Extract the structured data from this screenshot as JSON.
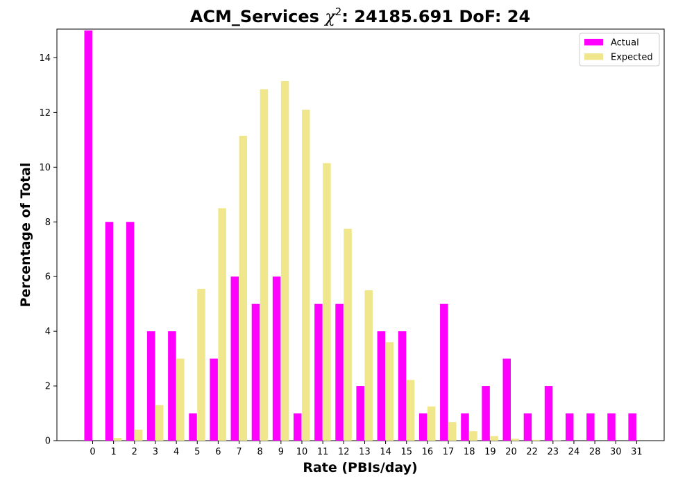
{
  "chart_data": {
    "type": "bar",
    "title_main": "ACM_Services ",
    "title_chi": "χ",
    "title_sup": "2",
    "title_rest": ": 24185.691 DoF: 24",
    "xlabel": "Rate (PBIs/day)",
    "ylabel": "Percentage of Total",
    "categories": [
      "0",
      "1",
      "2",
      "3",
      "4",
      "5",
      "6",
      "7",
      "8",
      "9",
      "10",
      "11",
      "12",
      "13",
      "14",
      "15",
      "16",
      "17",
      "18",
      "19",
      "20",
      "22",
      "23",
      "24",
      "28",
      "30",
      "31"
    ],
    "series": [
      {
        "name": "Actual",
        "color": "#ff00ff",
        "values": [
          15,
          8,
          8,
          4,
          4,
          1,
          3,
          6,
          5,
          6,
          1,
          5,
          5,
          2,
          4,
          4,
          1,
          5,
          1,
          2,
          3,
          1,
          2,
          1,
          1,
          1,
          1
        ]
      },
      {
        "name": "Expected",
        "color": "#f0e68c",
        "values": [
          0.0,
          0.1,
          0.4,
          1.3,
          3.0,
          5.55,
          8.5,
          11.15,
          12.85,
          13.15,
          12.1,
          10.15,
          7.75,
          5.5,
          3.6,
          2.22,
          1.25,
          0.68,
          0.35,
          0.17,
          0.07,
          0.03,
          0.01,
          0.0,
          0.0,
          0.0,
          0.0
        ]
      }
    ],
    "ylim": [
      0,
      15.05
    ],
    "yticks": [
      0,
      2,
      4,
      6,
      8,
      10,
      12,
      14
    ],
    "legend_position": "top-right",
    "grid": false
  }
}
